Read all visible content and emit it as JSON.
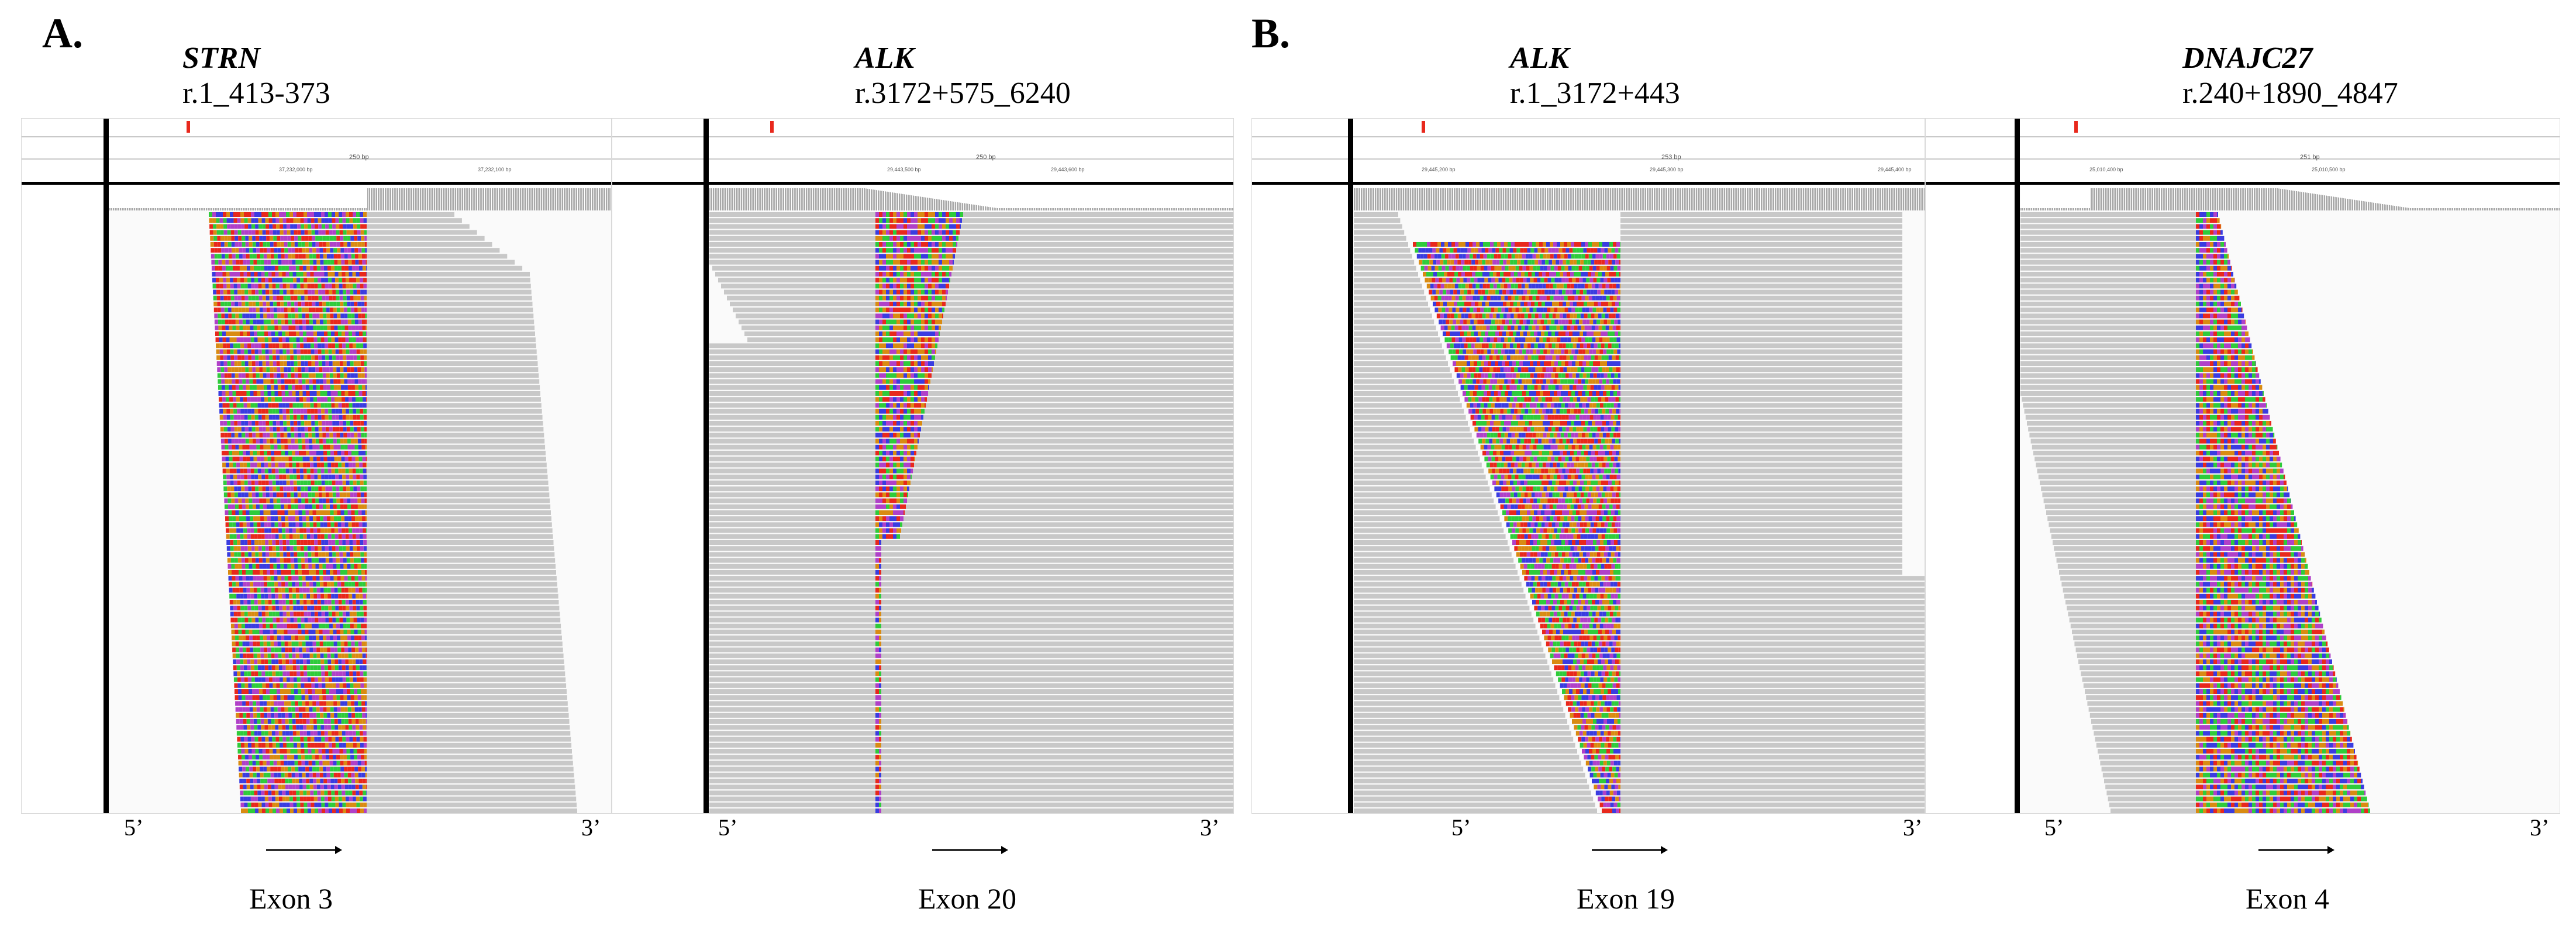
{
  "sections": [
    "A.",
    "B."
  ],
  "panels": [
    {
      "gene": "STRN",
      "notation": "r.1_413-373",
      "exon": "Exon 3",
      "five_prime": "5’",
      "three_prime": "3’",
      "span": "250 bp",
      "pos1": "37,232,000 bp",
      "pos2": "37,232,100 bp"
    },
    {
      "gene": "ALK",
      "notation": "r.3172+575_6240",
      "exon": "Exon 20",
      "five_prime": "5’",
      "three_prime": "3’",
      "span": "250 bp",
      "pos1": "29,443,500 bp",
      "pos2": "29,443,600 bp"
    },
    {
      "gene": "ALK",
      "notation": "r.1_3172+443",
      "exon": "Exon 19",
      "five_prime": "5’",
      "three_prime": "3’",
      "span": "253 bp",
      "pos1": "29,445,200 bp",
      "pos2": "29,445,300 bp",
      "pos3": "29,445,400 bp"
    },
    {
      "gene": "DNAJC27",
      "notation": "r.240+1890_4847",
      "exon": "Exon 4",
      "five_prime": "5’",
      "three_prime": "3’",
      "span": "251 bp",
      "pos1": "25,010,400 bp",
      "pos2": "25,010,500 bp"
    }
  ],
  "colors": {
    "read": "#c8c8c8",
    "A": "#2fcb3b",
    "C": "#3a3ce0",
    "G": "#d98b12",
    "T": "#e8281c",
    "extra": "#b040c8",
    "divider": "#000000",
    "marker": "#e8281c"
  }
}
